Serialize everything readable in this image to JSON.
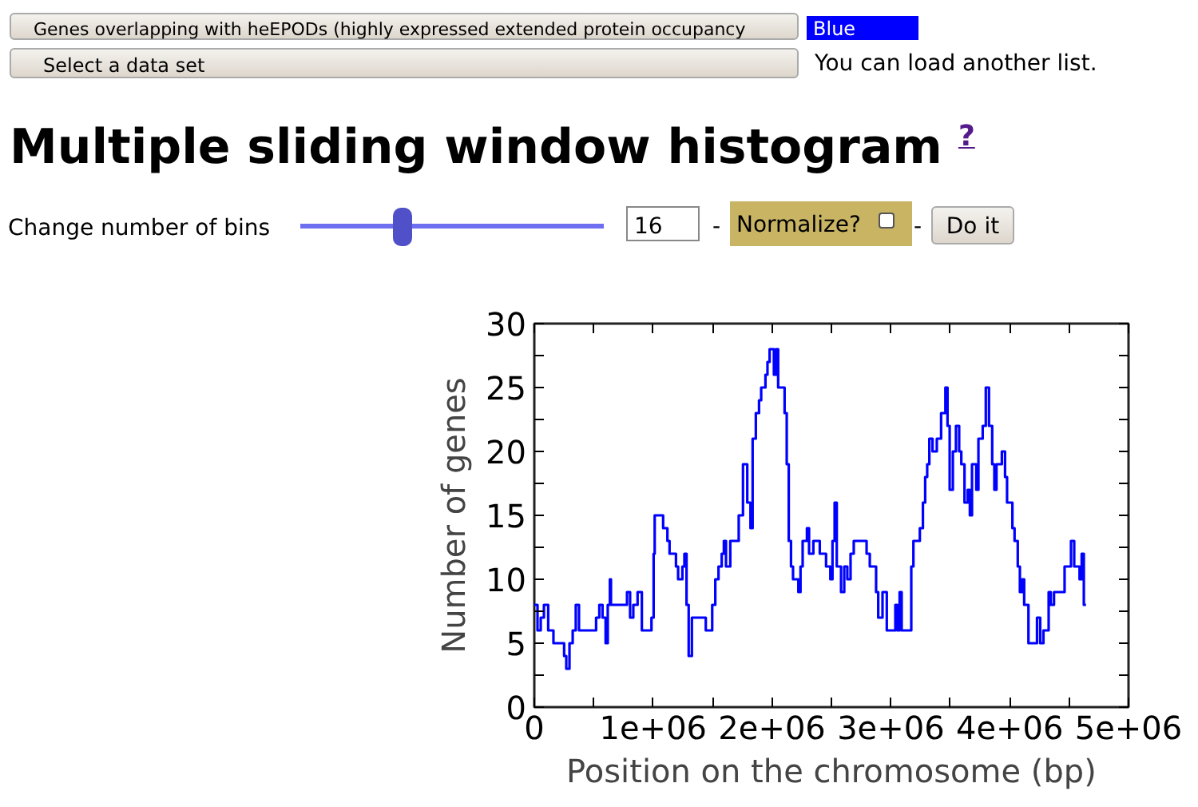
{
  "chart_data": {
    "type": "step",
    "title": "Multiple sliding window histogram",
    "xlabel": "Position on the chromosome (bp)",
    "ylabel": "Number of genes",
    "annotations": [
      "Genes overlapping with heEPODs (highly expressed extended protein occupancy",
      "Blue",
      "Select a data set",
      "You can load another list.",
      "?",
      "Change number of bins",
      "16",
      "-",
      "Normalize?",
      "-",
      "Do it"
    ],
    "series": [
      {
        "color": "#0000ff",
        "x": [
          0,
          27000,
          54000,
          81000,
          117000,
          161000,
          251000,
          269000,
          296000,
          323000,
          349000,
          376000,
          520000,
          547000,
          574000,
          600000,
          618000,
          636000,
          645000,
          780000,
          806000,
          833000,
          869000,
          905000,
          986000,
          1004000,
          1013000,
          1084000,
          1120000,
          1138000,
          1192000,
          1210000,
          1246000,
          1263000,
          1281000,
          1299000,
          1326000,
          1443000,
          1497000,
          1523000,
          1550000,
          1577000,
          1595000,
          1613000,
          1649000,
          1694000,
          1720000,
          1756000,
          1792000,
          1819000,
          1837000,
          1864000,
          1891000,
          1909000,
          1945000,
          1962000,
          1980000,
          2016000,
          2034000,
          2052000,
          2106000,
          2124000,
          2141000,
          2160000,
          2177000,
          2222000,
          2240000,
          2258000,
          2294000,
          2312000,
          2348000,
          2402000,
          2455000,
          2491000,
          2509000,
          2527000,
          2545000,
          2581000,
          2608000,
          2634000,
          2661000,
          2688000,
          2796000,
          2823000,
          2876000,
          2894000,
          2930000,
          2966000,
          3038000,
          3055000,
          3074000,
          3091000,
          3172000,
          3190000,
          3244000,
          3270000,
          3289000,
          3306000,
          3324000,
          3351000,
          3387000,
          3423000,
          3459000,
          3477000,
          3495000,
          3522000,
          3548000,
          3575000,
          3593000,
          3620000,
          3647000,
          3665000,
          3683000,
          3719000,
          3737000,
          3773000,
          3799000,
          3826000,
          3853000,
          3871000,
          3889000,
          3934000,
          3961000,
          3978000,
          4023000,
          4041000,
          4068000,
          4086000,
          4104000,
          4122000,
          4158000,
          4230000,
          4257000,
          4284000,
          4328000,
          4346000,
          4373000,
          4462000,
          4516000,
          4543000,
          4588000,
          4606000,
          4624000,
          4642000
        ],
        "values": [
          8,
          6,
          7,
          8,
          6,
          5,
          4,
          3,
          5,
          6,
          8,
          6,
          7,
          8,
          7,
          5,
          8,
          10,
          8,
          9,
          7,
          8,
          9,
          6,
          7,
          12,
          15,
          14,
          13,
          12,
          11,
          10,
          11,
          12,
          8,
          4,
          7,
          6,
          8,
          10,
          11,
          12,
          13,
          11,
          13,
          13,
          15,
          19,
          16,
          14,
          21,
          23,
          24,
          25,
          26,
          27,
          28,
          26,
          28,
          25,
          23,
          19,
          13,
          11,
          10,
          9,
          11,
          13,
          14,
          12,
          13,
          12,
          11,
          10,
          13,
          16,
          11,
          9,
          11,
          10,
          12,
          13,
          12,
          11,
          9,
          7,
          9,
          6,
          8,
          6,
          9,
          6,
          11,
          13,
          14,
          16,
          18,
          19,
          21,
          20,
          21,
          23,
          25,
          22,
          17,
          20,
          22,
          20,
          19,
          16,
          17,
          15,
          19,
          17,
          21,
          22,
          25,
          22,
          19,
          17,
          19,
          20,
          18,
          16,
          14,
          13,
          11,
          9,
          10,
          8,
          5,
          7,
          5,
          6,
          9,
          8,
          9,
          11,
          13,
          11,
          10,
          12,
          8,
          8
        ]
      }
    ],
    "xlim": [
      0,
      5000000
    ],
    "ylim": [
      0,
      30
    ],
    "xticks": [
      {
        "value": 0,
        "label": "0"
      },
      {
        "value": 500000,
        "label": null
      },
      {
        "value": 1000000,
        "label": "1e+06"
      },
      {
        "value": 1500000,
        "label": null
      },
      {
        "value": 2000000,
        "label": "2e+06"
      },
      {
        "value": 2500000,
        "label": null
      },
      {
        "value": 3000000,
        "label": "3e+06"
      },
      {
        "value": 3500000,
        "label": null
      },
      {
        "value": 4000000,
        "label": "4e+06"
      },
      {
        "value": 4500000,
        "label": null
      },
      {
        "value": 5000000,
        "label": "5e+06"
      }
    ],
    "yticks": [
      0,
      {
        "value": 2.5,
        "label": null
      },
      5,
      {
        "value": 7.5,
        "label": null
      },
      10,
      {
        "value": 12.5,
        "label": null
      },
      15,
      {
        "value": 17.5,
        "label": null
      },
      20,
      {
        "value": 22.5,
        "label": null
      },
      25,
      {
        "value": 27.5,
        "label": null
      },
      30
    ],
    "grid": false,
    "line_style": "solid"
  }
}
